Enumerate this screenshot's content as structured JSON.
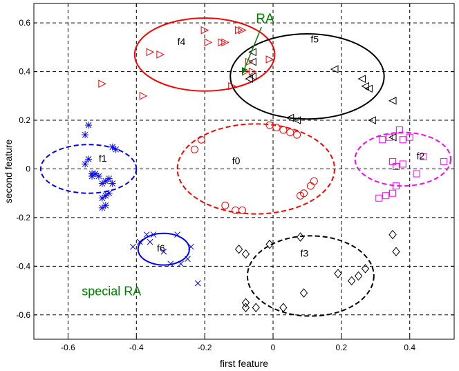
{
  "chart_data": {
    "type": "scatter",
    "xlabel": "first feature",
    "ylabel": "second feature",
    "xlim": [
      -0.7,
      0.53
    ],
    "ylim": [
      -0.7,
      0.68
    ],
    "xticks": [
      -0.6,
      -0.4,
      -0.2,
      0,
      0.2,
      0.4
    ],
    "yticks": [
      -0.6,
      -0.4,
      -0.2,
      0,
      0.2,
      0.4,
      0.6
    ],
    "xtick_labels": [
      "-0.6",
      "-0.4",
      "-0.2",
      "0",
      "0.2",
      "0.4"
    ],
    "ytick_labels": [
      "-0.6",
      "-0.4",
      "-0.2",
      "0",
      "0.2",
      "0.4",
      "0.6"
    ],
    "grid": true,
    "series": [
      {
        "name": "f0",
        "marker": "circle",
        "color": "#ff0000",
        "points": [
          [
            -0.23,
            0.08
          ],
          [
            -0.21,
            0.12
          ],
          [
            -0.14,
            -0.15
          ],
          [
            -0.11,
            -0.17
          ],
          [
            -0.09,
            -0.17
          ],
          [
            -0.01,
            0.18
          ],
          [
            0.01,
            0.17
          ],
          [
            0.03,
            0.16
          ],
          [
            0.05,
            0.15
          ],
          [
            0.07,
            0.14
          ],
          [
            0.08,
            -0.11
          ],
          [
            0.09,
            -0.1
          ],
          [
            0.11,
            -0.07
          ],
          [
            0.12,
            -0.05
          ]
        ]
      },
      {
        "name": "f1",
        "marker": "asterisk",
        "color": "#0000ff",
        "points": [
          [
            -0.54,
            0.18
          ],
          [
            -0.55,
            0.14
          ],
          [
            -0.54,
            0.04
          ],
          [
            -0.55,
            0.02
          ],
          [
            -0.53,
            -0.02
          ],
          [
            -0.53,
            -0.03
          ],
          [
            -0.52,
            -0.02
          ],
          [
            -0.51,
            -0.03
          ],
          [
            -0.5,
            -0.06
          ],
          [
            -0.49,
            -0.05
          ],
          [
            -0.48,
            -0.04
          ],
          [
            -0.47,
            -0.06
          ],
          [
            -0.47,
            0.09
          ],
          [
            -0.46,
            0.08
          ],
          [
            -0.5,
            -0.12
          ],
          [
            -0.49,
            -0.11
          ],
          [
            -0.5,
            -0.16
          ],
          [
            -0.49,
            -0.15
          ],
          [
            -0.48,
            -0.1
          ]
        ]
      },
      {
        "name": "f2",
        "marker": "square",
        "color": "#ff00ff",
        "points": [
          [
            0.32,
            0.12
          ],
          [
            0.34,
            0.13
          ],
          [
            0.37,
            0.16
          ],
          [
            0.38,
            0.12
          ],
          [
            0.4,
            0.13
          ],
          [
            0.35,
            0.03
          ],
          [
            0.36,
            0.01
          ],
          [
            0.38,
            0.02
          ],
          [
            0.36,
            -0.07
          ],
          [
            0.35,
            -0.1
          ],
          [
            0.33,
            -0.11
          ],
          [
            0.31,
            -0.12
          ],
          [
            0.42,
            -0.02
          ],
          [
            0.44,
            0.05
          ],
          [
            0.5,
            0.03
          ]
        ]
      },
      {
        "name": "f3",
        "marker": "diamond",
        "color": "#000000",
        "points": [
          [
            -0.1,
            -0.33
          ],
          [
            -0.08,
            -0.35
          ],
          [
            -0.08,
            -0.55
          ],
          [
            -0.08,
            -0.57
          ],
          [
            -0.05,
            -0.57
          ],
          [
            -0.01,
            -0.31
          ],
          [
            0.03,
            -0.57
          ],
          [
            0.08,
            -0.28
          ],
          [
            0.09,
            -0.51
          ],
          [
            0.19,
            -0.43
          ],
          [
            0.23,
            -0.46
          ],
          [
            0.25,
            -0.44
          ],
          [
            0.27,
            -0.41
          ],
          [
            0.35,
            -0.27
          ],
          [
            0.36,
            -0.34
          ]
        ]
      },
      {
        "name": "f4",
        "marker": "triangle-right",
        "color": "#ff0000",
        "points": [
          [
            -0.5,
            0.35
          ],
          [
            -0.38,
            0.3
          ],
          [
            -0.36,
            0.48
          ],
          [
            -0.33,
            0.47
          ],
          [
            -0.2,
            0.57
          ],
          [
            -0.19,
            0.52
          ],
          [
            -0.15,
            0.52
          ],
          [
            -0.14,
            0.52
          ],
          [
            -0.1,
            0.57
          ],
          [
            -0.09,
            0.57
          ],
          [
            -0.12,
            0.34
          ],
          [
            -0.08,
            0.4
          ],
          [
            -0.07,
            0.44
          ],
          [
            -0.06,
            0.4
          ],
          [
            -0.01,
            0.45
          ]
        ]
      },
      {
        "name": "f5",
        "marker": "triangle-left",
        "color": "#000000",
        "points": [
          [
            -0.06,
            0.38
          ],
          [
            -0.06,
            0.44
          ],
          [
            -0.06,
            0.48
          ],
          [
            -0.07,
            0.37
          ],
          [
            0.05,
            0.21
          ],
          [
            0.07,
            0.2
          ],
          [
            0.18,
            0.41
          ],
          [
            0.26,
            0.37
          ],
          [
            0.27,
            0.34
          ],
          [
            0.28,
            0.33
          ],
          [
            0.29,
            0.2
          ],
          [
            0.35,
            0.28
          ],
          [
            0.35,
            0.13
          ]
        ]
      },
      {
        "name": "f6",
        "marker": "x",
        "color": "#0000ff",
        "points": [
          [
            -0.41,
            -0.32
          ],
          [
            -0.39,
            -0.3
          ],
          [
            -0.37,
            -0.27
          ],
          [
            -0.36,
            -0.3
          ],
          [
            -0.35,
            -0.27
          ],
          [
            -0.32,
            -0.34
          ],
          [
            -0.3,
            -0.39
          ],
          [
            -0.28,
            -0.27
          ],
          [
            -0.27,
            -0.39
          ],
          [
            -0.25,
            -0.37
          ],
          [
            -0.24,
            -0.32
          ],
          [
            -0.22,
            -0.47
          ]
        ]
      }
    ],
    "ellipses": [
      {
        "name": "f0",
        "cx": -0.05,
        "cy": 0.0,
        "rx": 0.23,
        "ry": 0.185,
        "style": "dashed",
        "color": "#ff0000"
      },
      {
        "name": "f1",
        "cx": -0.54,
        "cy": 0.0,
        "rx": 0.14,
        "ry": 0.1,
        "style": "dashed",
        "color": "#0000ff"
      },
      {
        "name": "f2",
        "cx": 0.38,
        "cy": 0.04,
        "rx": 0.14,
        "ry": 0.11,
        "style": "dashed",
        "color": "#ff00ff"
      },
      {
        "name": "f3",
        "cx": 0.11,
        "cy": -0.44,
        "rx": 0.185,
        "ry": 0.165,
        "style": "dashed",
        "color": "#000000"
      },
      {
        "name": "f4",
        "cx": -0.2,
        "cy": 0.47,
        "rx": 0.205,
        "ry": 0.15,
        "style": "solid",
        "color": "#ff0000"
      },
      {
        "name": "f5",
        "cx": 0.1,
        "cy": 0.38,
        "rx": 0.225,
        "ry": 0.175,
        "style": "solid",
        "color": "#000000"
      },
      {
        "name": "f6",
        "cx": -0.32,
        "cy": -0.33,
        "rx": 0.075,
        "ry": 0.065,
        "style": "solid",
        "color": "#0000ff"
      }
    ],
    "cluster_labels": [
      {
        "text": "f0",
        "x": -0.12,
        "y": 0.02
      },
      {
        "text": "f1",
        "x": -0.51,
        "y": 0.03
      },
      {
        "text": "f2",
        "x": 0.42,
        "y": 0.04
      },
      {
        "text": "f3",
        "x": 0.08,
        "y": -0.36
      },
      {
        "text": "f4",
        "x": -0.28,
        "y": 0.51
      },
      {
        "text": "f5",
        "x": 0.11,
        "y": 0.52
      },
      {
        "text": "f6",
        "x": -0.34,
        "y": -0.34
      }
    ],
    "annotations": [
      {
        "text": "RA",
        "x": -0.05,
        "y": 0.6,
        "color": "#008000",
        "arrow_to": [
          -0.09,
          0.39
        ]
      },
      {
        "text": "special RA",
        "x": -0.56,
        "y": -0.52,
        "color": "#008000"
      }
    ]
  }
}
